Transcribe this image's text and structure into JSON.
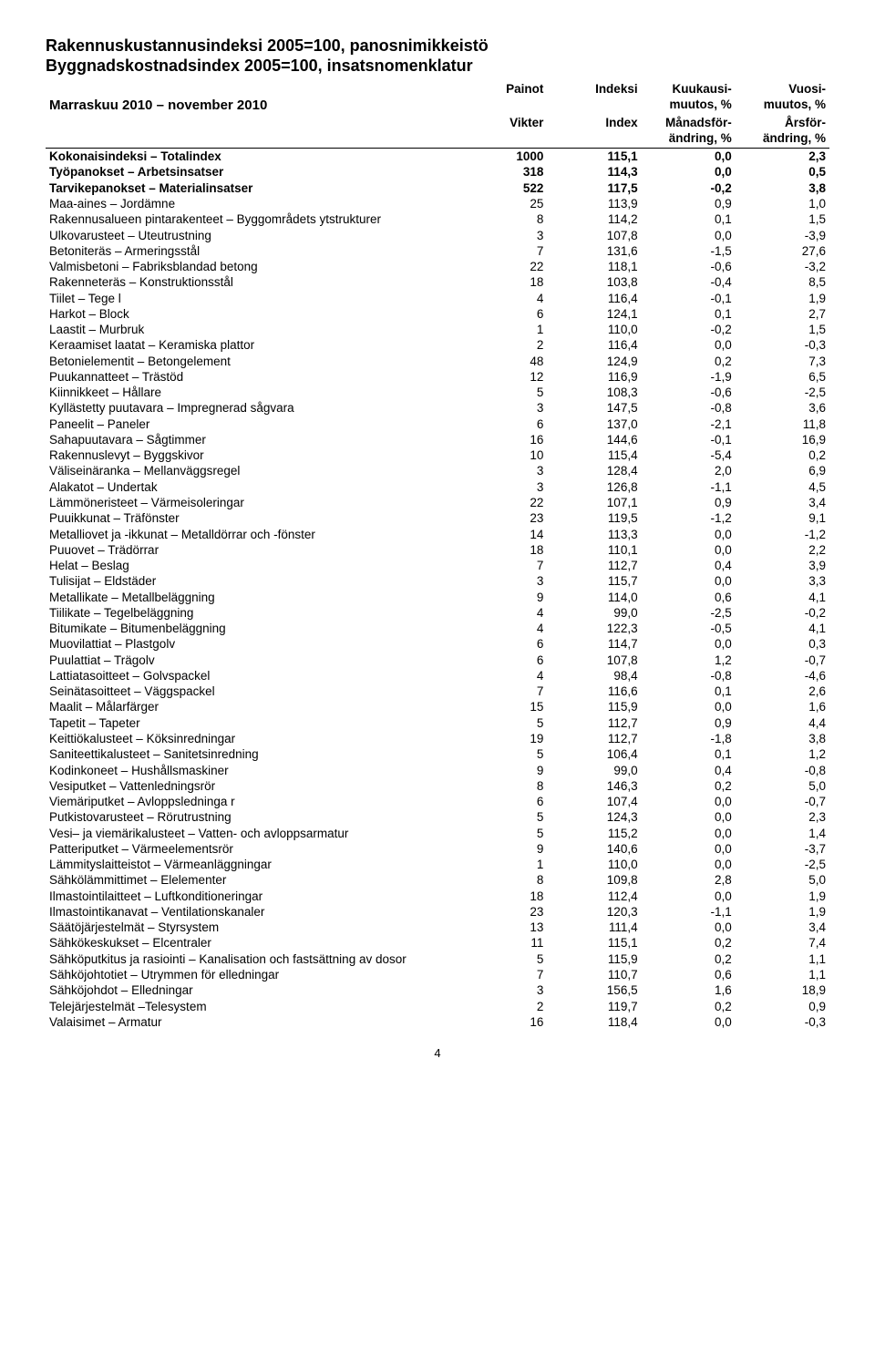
{
  "titles": {
    "line1": "Rakennuskustannusindeksi 2005=100, panosnimikkeistö",
    "line2": "Byggnadskostnadsindex  2005=100, insatsnomenklatur"
  },
  "period": "Marraskuu 2010 – november 2010",
  "headers": {
    "painot": "Painot",
    "indeksi": "Indeksi",
    "kk1": "Kuukausi-",
    "kk2": "muutos, %",
    "vu1": "Vuosi-",
    "vu2": "muutos, %",
    "vikter": "Vikter",
    "index": "Index",
    "mf1": "Månadsför-",
    "mf2": "ändring, %",
    "af1": "Årsför-",
    "af2": "ändring, %"
  },
  "sections": [
    {
      "label": "Kokonaisindeksi – Totalindex",
      "w": "1000",
      "idx": "115,1",
      "mm": "0,0",
      "ym": "2,3"
    },
    {
      "label": "Työpanokset – Arbetsinsatser",
      "w": "318",
      "idx": "114,3",
      "mm": "0,0",
      "ym": "0,5"
    },
    {
      "label": "Tarvikepanokset – Materialinsatser",
      "w": "522",
      "idx": "117,5",
      "mm": "-0,2",
      "ym": "3,8"
    }
  ],
  "rows": [
    {
      "label": "Maa-aines – Jordämne",
      "w": "25",
      "idx": "113,9",
      "mm": "0,9",
      "ym": "1,0"
    },
    {
      "label": "Rakennusalueen pintarakenteet – Byggområdets ytstrukturer",
      "w": "8",
      "idx": "114,2",
      "mm": "0,1",
      "ym": "1,5"
    },
    {
      "label": "Ulkovarusteet – Uteutrustning",
      "w": "3",
      "idx": "107,8",
      "mm": "0,0",
      "ym": "-3,9"
    },
    {
      "label": "Betoniteräs – Armeringsstål",
      "w": "7",
      "idx": "131,6",
      "mm": "-1,5",
      "ym": "27,6"
    },
    {
      "label": "Valmisbetoni – Fabriksblandad betong",
      "w": "22",
      "idx": "118,1",
      "mm": "-0,6",
      "ym": "-3,2"
    },
    {
      "label": "Rakenneteräs – Konstruktionsstål",
      "w": "18",
      "idx": "103,8",
      "mm": "-0,4",
      "ym": "8,5"
    },
    {
      "label": "Tiilet – Tege l",
      "w": "4",
      "idx": "116,4",
      "mm": "-0,1",
      "ym": "1,9"
    },
    {
      "label": "Harkot – Block",
      "w": "6",
      "idx": "124,1",
      "mm": "0,1",
      "ym": "2,7"
    },
    {
      "label": "Laastit – Murbruk",
      "w": "1",
      "idx": "110,0",
      "mm": "-0,2",
      "ym": "1,5"
    },
    {
      "label": "Keraamiset laatat – Keramiska plattor",
      "w": "2",
      "idx": "116,4",
      "mm": "0,0",
      "ym": "-0,3"
    },
    {
      "label": "Betonielementit – Betongelement",
      "w": "48",
      "idx": "124,9",
      "mm": "0,2",
      "ym": "7,3"
    },
    {
      "label": "Puukannatteet – Trästöd",
      "w": "12",
      "idx": "116,9",
      "mm": "-1,9",
      "ym": "6,5"
    },
    {
      "label": "Kiinnikkeet – Hållare",
      "w": "5",
      "idx": "108,3",
      "mm": "-0,6",
      "ym": "-2,5"
    },
    {
      "label": "Kyllästetty puutavara – Impregnerad sågvara",
      "w": "3",
      "idx": "147,5",
      "mm": "-0,8",
      "ym": "3,6"
    },
    {
      "label": "Paneelit – Paneler",
      "w": "6",
      "idx": "137,0",
      "mm": "-2,1",
      "ym": "11,8"
    },
    {
      "label": "Sahapuutavara – Sågtimmer",
      "w": "16",
      "idx": "144,6",
      "mm": "-0,1",
      "ym": "16,9"
    },
    {
      "label": "Rakennuslevyt – Byggskivor",
      "w": "10",
      "idx": "115,4",
      "mm": "-5,4",
      "ym": "0,2"
    },
    {
      "label": "Väliseinäranka – Mellanväggsregel",
      "w": "3",
      "idx": "128,4",
      "mm": "2,0",
      "ym": "6,9"
    },
    {
      "label": "Alakatot – Undertak",
      "w": "3",
      "idx": "126,8",
      "mm": "-1,1",
      "ym": "4,5"
    },
    {
      "label": "Lämmöneristeet – Värmeisoleringar",
      "w": "22",
      "idx": "107,1",
      "mm": "0,9",
      "ym": "3,4"
    },
    {
      "label": "Puuikkunat – Träfönster",
      "w": "23",
      "idx": "119,5",
      "mm": "-1,2",
      "ym": "9,1"
    },
    {
      "label": "Metalliovet ja -ikkunat – Metalldörrar och -fönster",
      "w": "14",
      "idx": "113,3",
      "mm": "0,0",
      "ym": "-1,2"
    },
    {
      "label": "Puuovet – Trädörrar",
      "w": "18",
      "idx": "110,1",
      "mm": "0,0",
      "ym": "2,2"
    },
    {
      "label": "Helat – Beslag",
      "w": "7",
      "idx": "112,7",
      "mm": "0,4",
      "ym": "3,9"
    },
    {
      "label": "Tulisijat – Eldstäder",
      "w": "3",
      "idx": "115,7",
      "mm": "0,0",
      "ym": "3,3"
    },
    {
      "label": "Metallikate – Metallbeläggning",
      "w": "9",
      "idx": "114,0",
      "mm": "0,6",
      "ym": "4,1"
    },
    {
      "label": "Tiilikate – Tegelbeläggning",
      "w": "4",
      "idx": "99,0",
      "mm": "-2,5",
      "ym": "-0,2"
    },
    {
      "label": "Bitumikate – Bitumenbeläggning",
      "w": "4",
      "idx": "122,3",
      "mm": "-0,5",
      "ym": "4,1"
    },
    {
      "label": "Muovilattiat – Plastgolv",
      "w": "6",
      "idx": "114,7",
      "mm": "0,0",
      "ym": "0,3"
    },
    {
      "label": "Puulattiat – Trägolv",
      "w": "6",
      "idx": "107,8",
      "mm": "1,2",
      "ym": "-0,7"
    },
    {
      "label": "Lattiatasoitteet – Golvspackel",
      "w": "4",
      "idx": "98,4",
      "mm": "-0,8",
      "ym": "-4,6"
    },
    {
      "label": "Seinätasoitteet – Väggspackel",
      "w": "7",
      "idx": "116,6",
      "mm": "0,1",
      "ym": "2,6"
    },
    {
      "label": "Maalit – Målarfärger",
      "w": "15",
      "idx": "115,9",
      "mm": "0,0",
      "ym": "1,6"
    },
    {
      "label": "Tapetit – Tapeter",
      "w": "5",
      "idx": "112,7",
      "mm": "0,9",
      "ym": "4,4"
    },
    {
      "label": "Keittiökalusteet – Köksinredningar",
      "w": "19",
      "idx": "112,7",
      "mm": "-1,8",
      "ym": "3,8"
    },
    {
      "label": "Saniteettikalusteet – Sanitetsinredning",
      "w": "5",
      "idx": "106,4",
      "mm": "0,1",
      "ym": "1,2"
    },
    {
      "label": "Kodinkoneet – Hushållsmaskiner",
      "w": "9",
      "idx": "99,0",
      "mm": "0,4",
      "ym": "-0,8"
    },
    {
      "label": "Vesiputket – Vattenledningsrör",
      "w": "8",
      "idx": "146,3",
      "mm": "0,2",
      "ym": "5,0"
    },
    {
      "label": "Viemäriputket – Avloppsledninga r",
      "w": "6",
      "idx": "107,4",
      "mm": "0,0",
      "ym": "-0,7"
    },
    {
      "label": "Putkistovarusteet – Rörutrustning",
      "w": "5",
      "idx": "124,3",
      "mm": "0,0",
      "ym": "2,3"
    },
    {
      "label": "Vesi– ja viemärikalusteet – Vatten- och avloppsarmatur",
      "w": "5",
      "idx": "115,2",
      "mm": "0,0",
      "ym": "1,4"
    },
    {
      "label": "Patteriputket – Värmeelementsrör",
      "w": "9",
      "idx": "140,6",
      "mm": "0,0",
      "ym": "-3,7"
    },
    {
      "label": "Lämmityslaitteistot – Värmeanläggningar",
      "w": "1",
      "idx": "110,0",
      "mm": "0,0",
      "ym": "-2,5"
    },
    {
      "label": "Sähkölämmittimet – Elelementer",
      "w": "8",
      "idx": "109,8",
      "mm": "2,8",
      "ym": "5,0"
    },
    {
      "label": "Ilmastointilaitteet – Luftkonditioneringar",
      "w": "18",
      "idx": "112,4",
      "mm": "0,0",
      "ym": "1,9"
    },
    {
      "label": "Ilmastointikanavat – Ventilationskanaler",
      "w": "23",
      "idx": "120,3",
      "mm": "-1,1",
      "ym": "1,9"
    },
    {
      "label": "Säätöjärjestelmät – Styrsystem",
      "w": "13",
      "idx": "111,4",
      "mm": "0,0",
      "ym": "3,4"
    },
    {
      "label": "Sähkökeskukset – Elcentraler",
      "w": "11",
      "idx": "115,1",
      "mm": "0,2",
      "ym": "7,4"
    },
    {
      "label": "Sähköputkitus ja rasiointi – Kanalisation och fastsättning av dosor",
      "w": "5",
      "idx": "115,9",
      "mm": "0,2",
      "ym": "1,1"
    },
    {
      "label": "Sähköjohtotiet – Utrymmen för elledningar",
      "w": "7",
      "idx": "110,7",
      "mm": "0,6",
      "ym": "1,1"
    },
    {
      "label": "Sähköjohdot – Elledningar",
      "w": "3",
      "idx": "156,5",
      "mm": "1,6",
      "ym": "18,9"
    },
    {
      "label": "Telejärjestelmät –Telesystem",
      "w": "2",
      "idx": "119,7",
      "mm": "0,2",
      "ym": "0,9"
    },
    {
      "label": "Valaisimet – Armatur",
      "w": "16",
      "idx": "118,4",
      "mm": "0,0",
      "ym": "-0,3"
    }
  ],
  "pagenum": "4"
}
